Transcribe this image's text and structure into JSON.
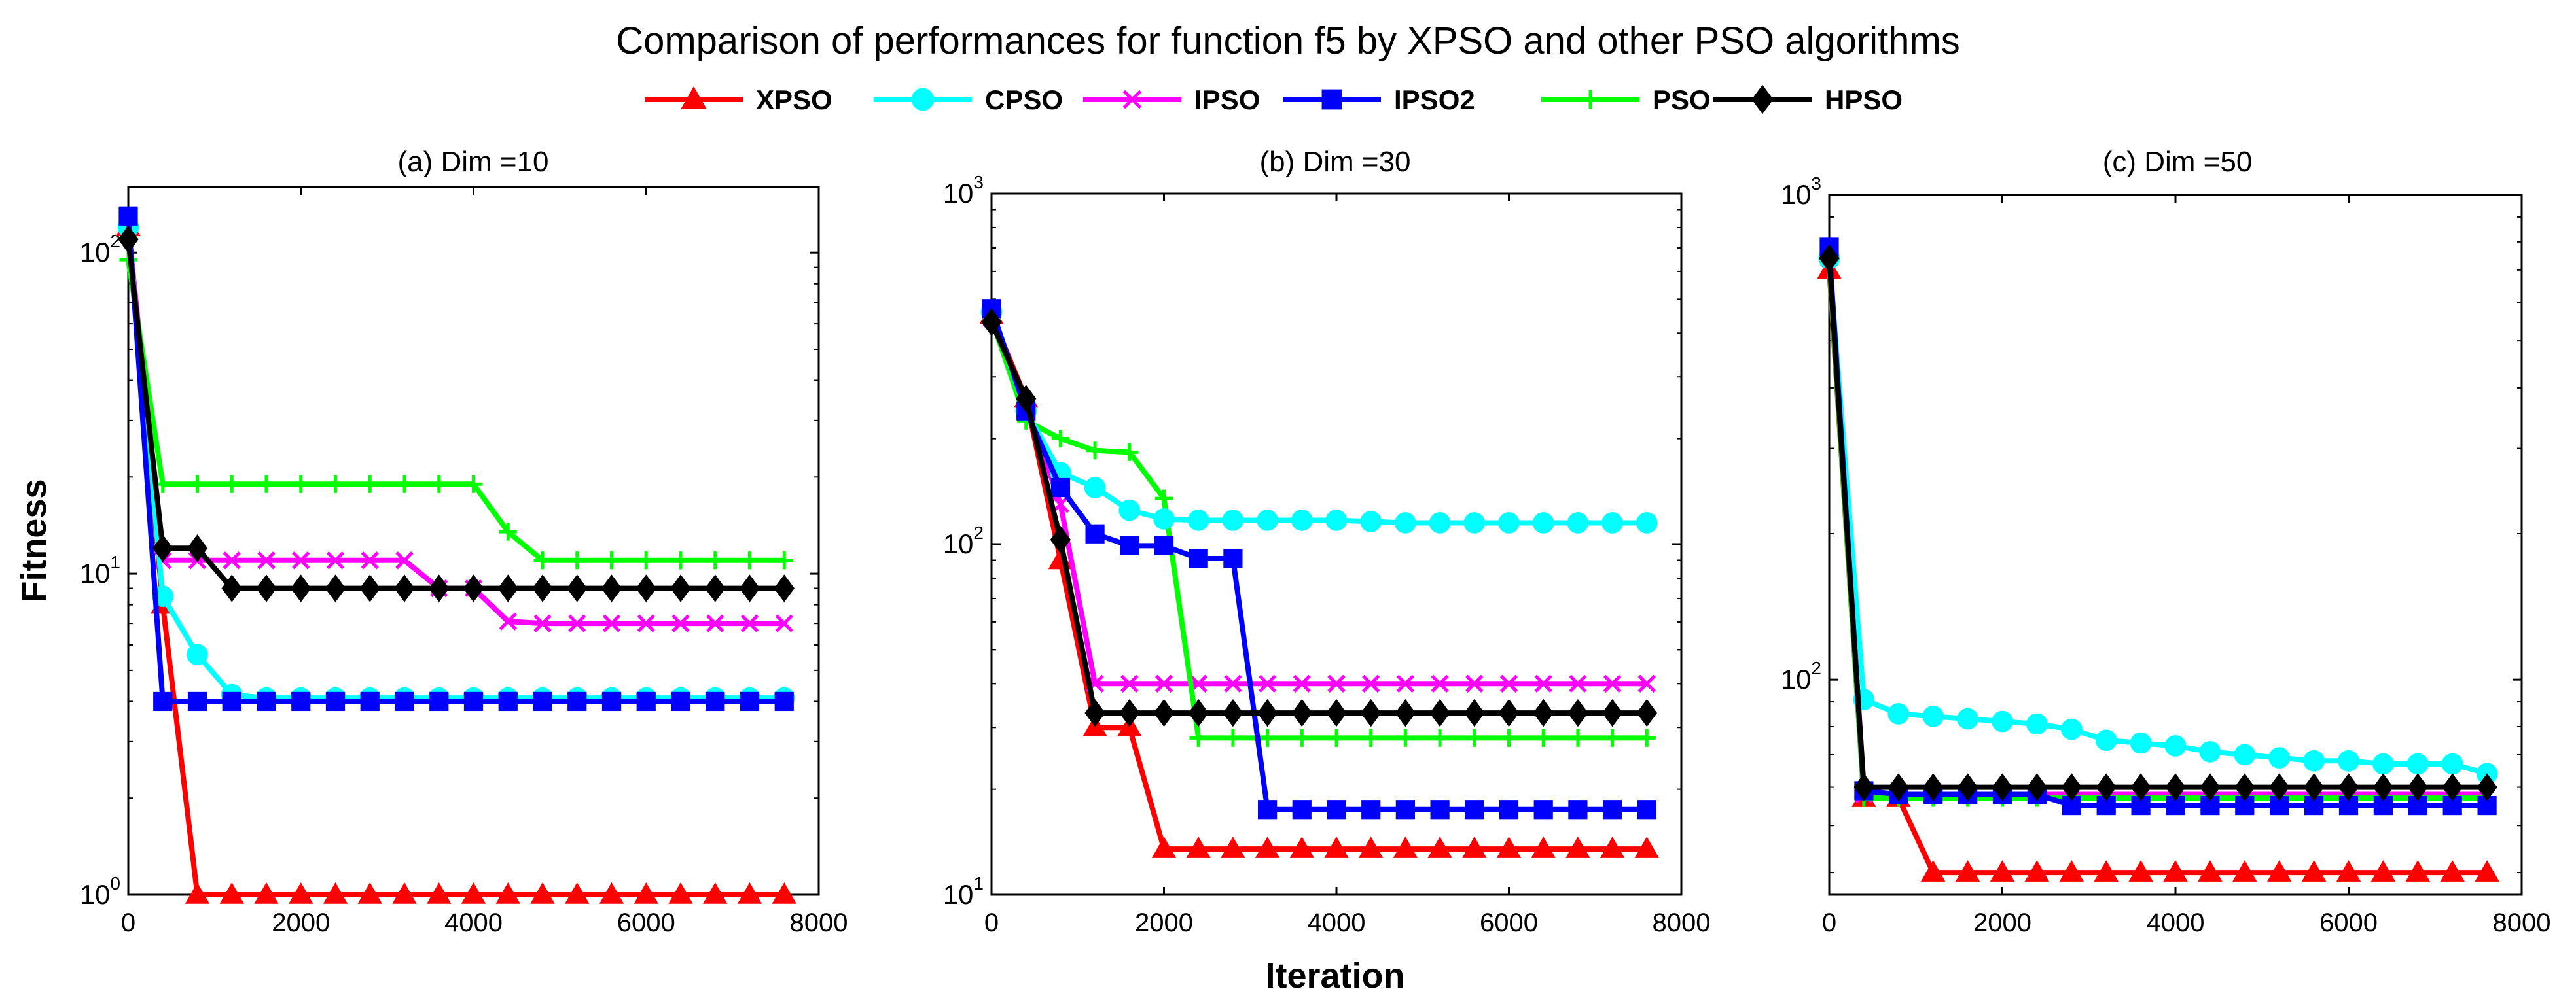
{
  "figure": {
    "title": "Comparison of performances for function f5 by XPSO and other PSO algorithms",
    "xlabel": "Iteration",
    "ylabel": "Fitness"
  },
  "legend": [
    {
      "name": "XPSO",
      "color": "#ff0000",
      "marker": "triangle"
    },
    {
      "name": "CPSO",
      "color": "#00ffff",
      "marker": "circle"
    },
    {
      "name": "IPSO",
      "color": "#ff00ff",
      "marker": "x"
    },
    {
      "name": "IPSO2",
      "color": "#0000ff",
      "marker": "square"
    },
    {
      "name": "PSO",
      "color": "#00ff00",
      "marker": "plus"
    },
    {
      "name": "HPSO",
      "color": "#000000",
      "marker": "diamond"
    }
  ],
  "chart_data": [
    {
      "type": "line",
      "title": "(a) Dim =10",
      "yscale": "log",
      "xlim": [
        0,
        8000
      ],
      "ylim": [
        1,
        160
      ],
      "xticks": [
        0,
        2000,
        4000,
        6000,
        8000
      ],
      "xtick_labels": [
        "0",
        "2000",
        "4000",
        "6000",
        "8000"
      ],
      "yticks": [
        1,
        10,
        100
      ],
      "ytick_labels": [
        {
          "base": "10",
          "exp": "0"
        },
        {
          "base": "10",
          "exp": "1"
        },
        {
          "base": "10",
          "exp": "2"
        }
      ],
      "x": [
        0,
        400,
        800,
        1200,
        1600,
        2000,
        2400,
        2800,
        3200,
        3600,
        4000,
        4400,
        4800,
        5200,
        5600,
        6000,
        6400,
        6800,
        7200,
        7600
      ],
      "series": [
        {
          "name": "XPSO",
          "values": [
            120,
            8,
            1,
            1,
            1,
            1,
            1,
            1,
            1,
            1,
            1,
            1,
            1,
            1,
            1,
            1,
            1,
            1,
            1,
            1
          ]
        },
        {
          "name": "CPSO",
          "values": [
            120,
            8.5,
            5.6,
            4.2,
            4.1,
            4.1,
            4.1,
            4.1,
            4.1,
            4.1,
            4.1,
            4.1,
            4.1,
            4.1,
            4.1,
            4.1,
            4.1,
            4.1,
            4.1,
            4.1
          ]
        },
        {
          "name": "IPSO",
          "values": [
            120,
            11,
            11,
            11,
            11,
            11,
            11,
            11,
            11,
            9,
            9,
            7.1,
            7,
            7,
            7,
            7,
            7,
            7,
            7,
            7
          ]
        },
        {
          "name": "IPSO2",
          "values": [
            130,
            4,
            4,
            4,
            4,
            4,
            4,
            4,
            4,
            4,
            4,
            4,
            4,
            4,
            4,
            4,
            4,
            4,
            4,
            4
          ]
        },
        {
          "name": "PSO",
          "values": [
            95,
            19,
            19,
            19,
            19,
            19,
            19,
            19,
            19,
            19,
            19,
            13.5,
            11,
            11,
            11,
            11,
            11,
            11,
            11,
            11
          ]
        },
        {
          "name": "HPSO",
          "values": [
            110,
            12,
            12,
            9,
            9,
            9,
            9,
            9,
            9,
            9,
            9,
            9,
            9,
            9,
            9,
            9,
            9,
            9,
            9,
            9
          ]
        }
      ]
    },
    {
      "type": "line",
      "title": "(b) Dim =30",
      "yscale": "log",
      "xlim": [
        0,
        8000
      ],
      "ylim": [
        10,
        1000
      ],
      "xticks": [
        0,
        2000,
        4000,
        6000,
        8000
      ],
      "xtick_labels": [
        "0",
        "2000",
        "4000",
        "6000",
        "8000"
      ],
      "yticks": [
        10,
        100,
        1000
      ],
      "ytick_labels": [
        {
          "base": "10",
          "exp": "1"
        },
        {
          "base": "10",
          "exp": "2"
        },
        {
          "base": "10",
          "exp": "3"
        }
      ],
      "x": [
        0,
        400,
        800,
        1200,
        1600,
        2000,
        2400,
        2800,
        3200,
        3600,
        4000,
        4400,
        4800,
        5200,
        5600,
        6000,
        6400,
        6800,
        7200,
        7600
      ],
      "series": [
        {
          "name": "XPSO",
          "values": [
            450,
            260,
            90,
            30,
            30,
            13.5,
            13.5,
            13.5,
            13.5,
            13.5,
            13.5,
            13.5,
            13.5,
            13.5,
            13.5,
            13.5,
            13.5,
            13.5,
            13.5,
            13.5
          ]
        },
        {
          "name": "CPSO",
          "values": [
            460,
            240,
            160,
            145,
            125,
            118,
            117,
            117,
            117,
            117,
            117,
            116,
            115,
            115,
            115,
            115,
            115,
            115,
            115,
            115
          ]
        },
        {
          "name": "IPSO",
          "values": [
            440,
            250,
            130,
            40,
            40,
            40,
            40,
            40,
            40,
            40,
            40,
            40,
            40,
            40,
            40,
            40,
            40,
            40,
            40,
            40
          ]
        },
        {
          "name": "IPSO2",
          "values": [
            470,
            240,
            145,
            107,
            99,
            99,
            91,
            91,
            17.5,
            17.5,
            17.5,
            17.5,
            17.5,
            17.5,
            17.5,
            17.5,
            17.5,
            17.5,
            17.5,
            17.5
          ]
        },
        {
          "name": "PSO",
          "values": [
            440,
            225,
            200,
            185,
            183,
            135,
            28,
            28,
            28,
            28,
            28,
            28,
            28,
            28,
            28,
            28,
            28,
            28,
            28,
            28
          ]
        },
        {
          "name": "HPSO",
          "values": [
            430,
            260,
            103,
            33,
            33,
            33,
            33,
            33,
            33,
            33,
            33,
            33,
            33,
            33,
            33,
            33,
            33,
            33,
            33,
            33
          ]
        }
      ]
    },
    {
      "type": "line",
      "title": "(c) Dim =50",
      "yscale": "log",
      "xlim": [
        0,
        8000
      ],
      "ylim": [
        36,
        1000
      ],
      "xticks": [
        0,
        2000,
        4000,
        6000,
        8000
      ],
      "xtick_labels": [
        "0",
        "2000",
        "4000",
        "6000",
        "8000"
      ],
      "yticks": [
        100,
        1000
      ],
      "ytick_labels": [
        {
          "base": "10",
          "exp": "2"
        },
        {
          "base": "10",
          "exp": "3"
        }
      ],
      "x": [
        0,
        400,
        800,
        1200,
        1600,
        2000,
        2400,
        2800,
        3200,
        3600,
        4000,
        4400,
        4800,
        5200,
        5600,
        6000,
        6400,
        6800,
        7200,
        7600
      ],
      "series": [
        {
          "name": "XPSO",
          "values": [
            700,
            57,
            57,
            40,
            40,
            40,
            40,
            40,
            40,
            40,
            40,
            40,
            40,
            40,
            40,
            40,
            40,
            40,
            40,
            40
          ]
        },
        {
          "name": "CPSO",
          "values": [
            740,
            91,
            85,
            84,
            83,
            82,
            81,
            79,
            75,
            74,
            73,
            71,
            70,
            69,
            68,
            68,
            67,
            67,
            67,
            64
          ]
        },
        {
          "name": "IPSO",
          "values": [
            740,
            58,
            58,
            58,
            58,
            58,
            58,
            58,
            58,
            58,
            58,
            58,
            58,
            58,
            58,
            58,
            58,
            58,
            58,
            58
          ]
        },
        {
          "name": "IPSO2",
          "values": [
            780,
            59,
            58,
            58,
            58,
            58,
            58,
            55,
            55,
            55,
            55,
            55,
            55,
            55,
            55,
            55,
            55,
            55,
            55,
            55
          ]
        },
        {
          "name": "PSO",
          "values": [
            720,
            57,
            57,
            57,
            57,
            57,
            57,
            57,
            57,
            57,
            57,
            57,
            57,
            57,
            57,
            57,
            57,
            57,
            57,
            57
          ]
        },
        {
          "name": "HPSO",
          "values": [
            740,
            60,
            60,
            60,
            60,
            60,
            60,
            60,
            60,
            60,
            60,
            60,
            60,
            60,
            60,
            60,
            60,
            60,
            60,
            60
          ]
        }
      ]
    }
  ]
}
